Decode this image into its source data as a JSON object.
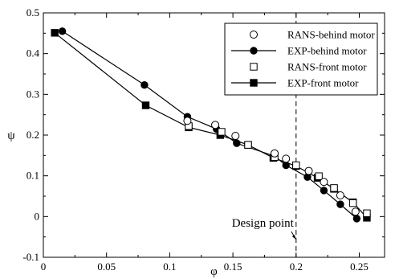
{
  "chart_data": {
    "type": "line",
    "xlabel": "φ",
    "ylabel": "ψ",
    "xlim": [
      0,
      0.27
    ],
    "ylim": [
      -0.1,
      0.5
    ],
    "xticks": [
      {
        "value": 0,
        "label": "0"
      },
      {
        "value": 0.05,
        "label": "0.05"
      },
      {
        "value": 0.1,
        "label": "0.1"
      },
      {
        "value": 0.15,
        "label": "0.15"
      },
      {
        "value": 0.2,
        "label": "0.2"
      },
      {
        "value": 0.25,
        "label": "0.25"
      }
    ],
    "yticks": [
      {
        "value": -0.1,
        "label": "-0.1"
      },
      {
        "value": 0,
        "label": "0"
      },
      {
        "value": 0.1,
        "label": "0.1"
      },
      {
        "value": 0.2,
        "label": "0.2"
      },
      {
        "value": 0.3,
        "label": "0.3"
      },
      {
        "value": 0.4,
        "label": "0.4"
      },
      {
        "value": 0.5,
        "label": "0.5"
      }
    ],
    "grid": false,
    "legend_position": "top-right",
    "series": [
      {
        "name": "RANS-behind motor",
        "marker": "circle-open",
        "line": false,
        "x": [
          0.114,
          0.136,
          0.152,
          0.183,
          0.192,
          0.21,
          0.222,
          0.235,
          0.247
        ],
        "y": [
          0.235,
          0.225,
          0.198,
          0.155,
          0.142,
          0.112,
          0.085,
          0.052,
          0.012
        ]
      },
      {
        "name": "EXP-behind motor",
        "marker": "circle-filled",
        "line": true,
        "x": [
          0.015,
          0.08,
          0.114,
          0.137,
          0.153,
          0.183,
          0.192,
          0.209,
          0.222,
          0.235,
          0.248
        ],
        "y": [
          0.455,
          0.323,
          0.245,
          0.215,
          0.18,
          0.148,
          0.126,
          0.097,
          0.064,
          0.03,
          -0.005
        ]
      },
      {
        "name": "RANS-front motor",
        "marker": "square-open",
        "line": false,
        "x": [
          0.115,
          0.141,
          0.162,
          0.183,
          0.2,
          0.218,
          0.23,
          0.245,
          0.256
        ],
        "y": [
          0.222,
          0.208,
          0.176,
          0.146,
          0.126,
          0.099,
          0.07,
          0.033,
          0.008
        ]
      },
      {
        "name": "EXP-front motor",
        "marker": "square-filled",
        "line": true,
        "x": [
          0.009,
          0.081,
          0.115,
          0.14,
          0.162,
          0.182,
          0.2,
          0.217,
          0.23,
          0.245,
          0.256
        ],
        "y": [
          0.451,
          0.273,
          0.219,
          0.2,
          0.176,
          0.144,
          0.124,
          0.095,
          0.068,
          0.035,
          -0.003
        ]
      }
    ],
    "annotations": [
      {
        "text": "Design point",
        "x": 0.2,
        "type": "vertical-dashed-line"
      }
    ]
  }
}
